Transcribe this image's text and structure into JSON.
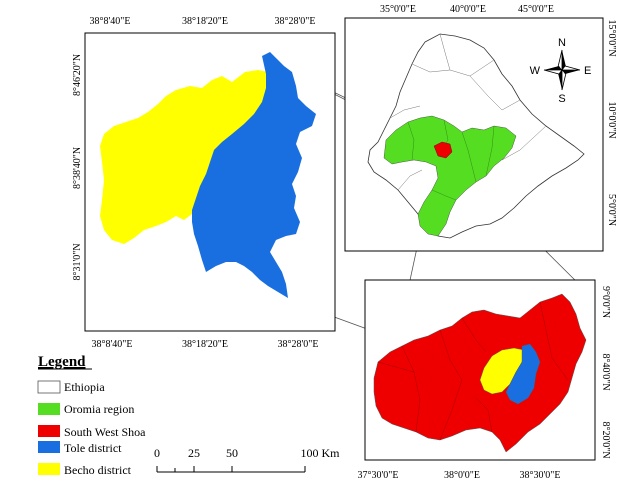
{
  "maps": {
    "district_map": {
      "x_ticks": [
        "38°8'40\"E",
        "38°18'20\"E",
        "38°28'0\"E"
      ],
      "y_ticks": [
        "8°46'20\"N",
        "8°38'40\"N",
        "8°31'0\"N"
      ]
    },
    "ethiopia_map": {
      "x_ticks": [
        "35°0'0\"E",
        "40°0'0\"E",
        "45°0'0\"E"
      ],
      "y_ticks": [
        "15°0'0\"N",
        "10°0'0\"N",
        "5°0'0\"N"
      ]
    },
    "zone_map": {
      "x_ticks": [
        "37°30'0\"E",
        "38°0'0\"E",
        "38°30'0\"E"
      ],
      "y_ticks": [
        "9°0'0\"N",
        "8°40'0\"N",
        "8°20'0\"N"
      ]
    }
  },
  "north_arrow": {
    "n": "N",
    "s": "S",
    "e": "E",
    "w": "W"
  },
  "legend": {
    "title": "Legend",
    "items": [
      {
        "label": "Ethiopia",
        "color": "#ffffff"
      },
      {
        "label": "Oromia region",
        "color": "#55dd22"
      },
      {
        "label": "South West Shoa",
        "color": "#ee0000"
      },
      {
        "label": "Tole district",
        "color": "#1a6fe0"
      },
      {
        "label": "Becho district",
        "color": "#ffff00"
      }
    ]
  },
  "scale_bar": {
    "labels": [
      "0",
      "25",
      "50",
      "100 Km"
    ]
  },
  "colors": {
    "oromia": "#55dd22",
    "south_west_shoa": "#ee0000",
    "tole": "#1a6fe0",
    "becho": "#ffff00",
    "ethiopia": "#ffffff"
  }
}
